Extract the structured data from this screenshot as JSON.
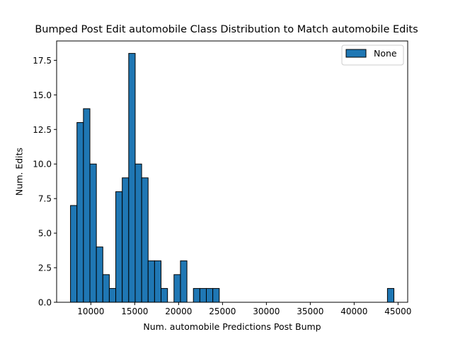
{
  "chart_data": {
    "type": "bar",
    "title": "Bumped Post Edit automobile Class Distribution to Match automobile Edits",
    "xlabel": "Num. automobile Predictions Post Bump",
    "ylabel": "Num. Edits",
    "xlim": [
      6100,
      46100
    ],
    "ylim": [
      0,
      18.9
    ],
    "xticks": [
      10000,
      15000,
      20000,
      25000,
      30000,
      35000,
      40000,
      45000
    ],
    "xtick_labels": [
      "10000",
      "15000",
      "20000",
      "25000",
      "30000",
      "35000",
      "40000",
      "45000"
    ],
    "yticks": [
      0,
      2.5,
      5,
      7.5,
      10,
      12.5,
      15,
      17.5
    ],
    "ytick_labels": [
      "0.0",
      "2.5",
      "5.0",
      "7.5",
      "10.0",
      "12.5",
      "15.0",
      "17.5"
    ],
    "bin_start": 7680,
    "bin_width": 737,
    "values": [
      7,
      13,
      14,
      10,
      4,
      2,
      1,
      8,
      9,
      18,
      10,
      9,
      3,
      3,
      1,
      0,
      2,
      3,
      0,
      1,
      1,
      1,
      1,
      0,
      0,
      0,
      0,
      0,
      0,
      0,
      0,
      0,
      0,
      0,
      0,
      0,
      0,
      0,
      0,
      0,
      0,
      0,
      0,
      0,
      0,
      0,
      0,
      0,
      0,
      1
    ],
    "series_name": "None",
    "bar_color": "#1f77b4",
    "edge_color": "#000000",
    "legend_position": "top-right",
    "grid": false
  }
}
